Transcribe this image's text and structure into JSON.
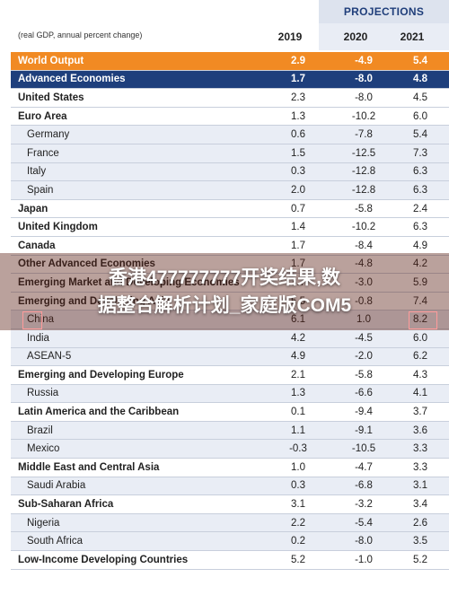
{
  "header": {
    "projections": "PROJECTIONS",
    "note": "(real GDP, annual percent change)",
    "years": [
      "2019",
      "2020",
      "2021"
    ]
  },
  "rows": [
    {
      "name": "World Output",
      "v": [
        "2.9",
        "-4.9",
        "5.4"
      ],
      "style": "orange"
    },
    {
      "name": "Advanced Economies",
      "v": [
        "1.7",
        "-8.0",
        "4.8"
      ],
      "style": "blue"
    },
    {
      "name": "United States",
      "v": [
        "2.3",
        "-8.0",
        "4.5"
      ],
      "style": "bold"
    },
    {
      "name": "Euro Area",
      "v": [
        "1.3",
        "-10.2",
        "6.0"
      ],
      "style": "bold"
    },
    {
      "name": "Germany",
      "v": [
        "0.6",
        "-7.8",
        "5.4"
      ],
      "style": "sub"
    },
    {
      "name": "France",
      "v": [
        "1.5",
        "-12.5",
        "7.3"
      ],
      "style": "sub"
    },
    {
      "name": "Italy",
      "v": [
        "0.3",
        "-12.8",
        "6.3"
      ],
      "style": "sub"
    },
    {
      "name": "Spain",
      "v": [
        "2.0",
        "-12.8",
        "6.3"
      ],
      "style": "sub"
    },
    {
      "name": "Japan",
      "v": [
        "0.7",
        "-5.8",
        "2.4"
      ],
      "style": "bold"
    },
    {
      "name": "United Kingdom",
      "v": [
        "1.4",
        "-10.2",
        "6.3"
      ],
      "style": "bold"
    },
    {
      "name": "Canada",
      "v": [
        "1.7",
        "-8.4",
        "4.9"
      ],
      "style": "bold"
    },
    {
      "name": "Other Advanced Economies",
      "v": [
        "1.7",
        "-4.8",
        "4.2"
      ],
      "style": "bold"
    },
    {
      "name": "Emerging Market and Developing Economies",
      "v": [
        "3.7",
        "-3.0",
        "5.9"
      ],
      "style": "bold"
    },
    {
      "name": "Emerging and Developing Asia",
      "v": [
        "5.5",
        "-0.8",
        "7.4"
      ],
      "style": "bold"
    },
    {
      "name": "China",
      "v": [
        "6.1",
        "1.0",
        "8.2"
      ],
      "style": "sub"
    },
    {
      "name": "India",
      "v": [
        "4.2",
        "-4.5",
        "6.0"
      ],
      "style": "sub"
    },
    {
      "name": "ASEAN-5",
      "v": [
        "4.9",
        "-2.0",
        "6.2"
      ],
      "style": "sub"
    },
    {
      "name": "Emerging and Developing Europe",
      "v": [
        "2.1",
        "-5.8",
        "4.3"
      ],
      "style": "bold"
    },
    {
      "name": "Russia",
      "v": [
        "1.3",
        "-6.6",
        "4.1"
      ],
      "style": "sub"
    },
    {
      "name": "Latin America and the Caribbean",
      "v": [
        "0.1",
        "-9.4",
        "3.7"
      ],
      "style": "bold"
    },
    {
      "name": "Brazil",
      "v": [
        "1.1",
        "-9.1",
        "3.6"
      ],
      "style": "sub"
    },
    {
      "name": "Mexico",
      "v": [
        "-0.3",
        "-10.5",
        "3.3"
      ],
      "style": "sub"
    },
    {
      "name": "Middle East and Central Asia",
      "v": [
        "1.0",
        "-4.7",
        "3.3"
      ],
      "style": "bold"
    },
    {
      "name": "Saudi Arabia",
      "v": [
        "0.3",
        "-6.8",
        "3.1"
      ],
      "style": "sub"
    },
    {
      "name": "Sub-Saharan Africa",
      "v": [
        "3.1",
        "-3.2",
        "3.4"
      ],
      "style": "bold"
    },
    {
      "name": "Nigeria",
      "v": [
        "2.2",
        "-5.4",
        "2.6"
      ],
      "style": "sub"
    },
    {
      "name": "South Africa",
      "v": [
        "0.2",
        "-8.0",
        "3.5"
      ],
      "style": "sub"
    },
    {
      "name": "Low-Income Developing Countries",
      "v": [
        "5.2",
        "-1.0",
        "5.2"
      ],
      "style": "bold"
    }
  ],
  "overlay": {
    "line1": "香港477777777开奖结果,数",
    "line2": "据整合解析计划_家庭版COM5"
  },
  "colors": {
    "orange": "#f18a23",
    "navy": "#1e3f7c",
    "subrow": "#e9edf5"
  }
}
